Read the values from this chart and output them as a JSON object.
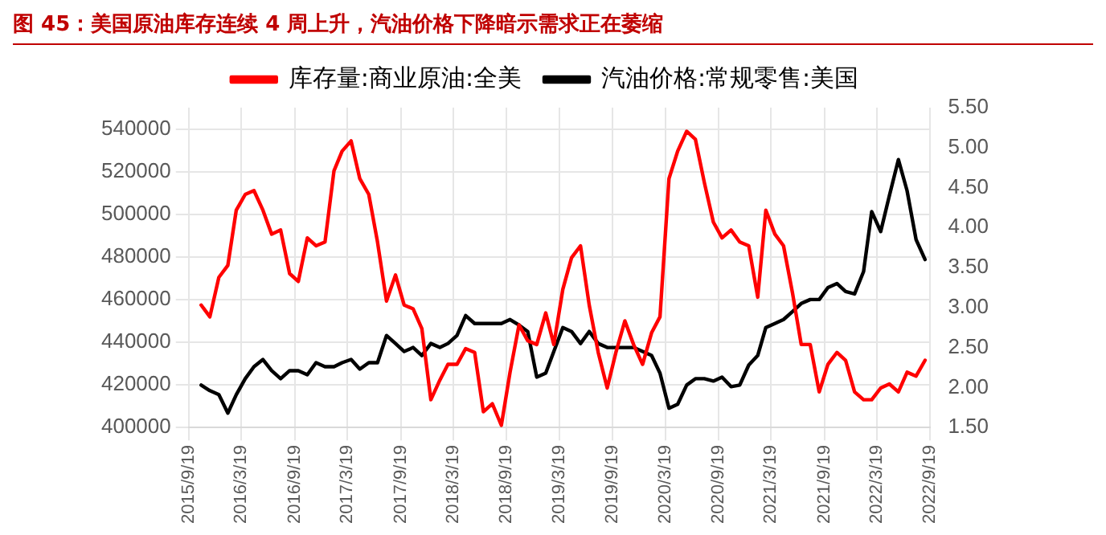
{
  "chart_data": {
    "type": "line",
    "title": "图 45：美国原油库存连续 4 周上升，汽油价格下降暗示需求正在萎缩",
    "legend": "top",
    "grid": true,
    "marker": "none",
    "line_style": "solid",
    "xlim": [
      "2015-09-19",
      "2022-09-19"
    ],
    "xticks": [
      {
        "value": "2015-09-19",
        "label": "2015/9/19"
      },
      {
        "value": "2016-03-19",
        "label": "2016/3/19"
      },
      {
        "value": "2016-09-19",
        "label": "2016/9/19"
      },
      {
        "value": "2017-03-19",
        "label": "2017/3/19"
      },
      {
        "value": "2017-09-19",
        "label": "2017/9/19"
      },
      {
        "value": "2018-03-19",
        "label": "2018/3/19"
      },
      {
        "value": "2018-09-19",
        "label": "2018/9/19"
      },
      {
        "value": "2019-03-19",
        "label": "2019/3/19"
      },
      {
        "value": "2019-09-19",
        "label": "2019/9/19"
      },
      {
        "value": "2020-03-19",
        "label": "2020/3/19"
      },
      {
        "value": "2020-09-19",
        "label": "2020/9/19"
      },
      {
        "value": "2021-03-19",
        "label": "2021/3/19"
      },
      {
        "value": "2021-09-19",
        "label": "2021/9/19"
      },
      {
        "value": "2022-03-19",
        "label": "2022/3/19"
      },
      {
        "value": "2022-09-19",
        "label": "2022/9/19"
      }
    ],
    "ylim": [
      400000,
      550000
    ],
    "yticks": [
      400000,
      420000,
      440000,
      460000,
      480000,
      500000,
      520000,
      540000
    ],
    "y2lim": [
      1.5,
      5.5
    ],
    "y2ticks": [
      {
        "value": 1.5,
        "label": "1.50"
      },
      {
        "value": 2,
        "label": "2.00"
      },
      {
        "value": 2.5,
        "label": "2.50"
      },
      {
        "value": 3,
        "label": "3.00"
      },
      {
        "value": 3.5,
        "label": "3.50"
      },
      {
        "value": 4,
        "label": "4.00"
      },
      {
        "value": 4.5,
        "label": "4.50"
      },
      {
        "value": 5,
        "label": "5.00"
      },
      {
        "value": 5.5,
        "label": "5.50"
      }
    ],
    "x": [
      "2015-11",
      "2015-12",
      "2016-01",
      "2016-02",
      "2016-03",
      "2016-04",
      "2016-05",
      "2016-06",
      "2016-07",
      "2016-08",
      "2016-09",
      "2016-10",
      "2016-11",
      "2016-12",
      "2017-01",
      "2017-02",
      "2017-03",
      "2017-04",
      "2017-05",
      "2017-06",
      "2017-07",
      "2017-08",
      "2017-09",
      "2017-10",
      "2017-11",
      "2017-12",
      "2018-01",
      "2018-02",
      "2018-03",
      "2018-04",
      "2018-05",
      "2018-06",
      "2018-07",
      "2018-08",
      "2018-09",
      "2018-10",
      "2018-11",
      "2018-12",
      "2019-01",
      "2019-02",
      "2019-03",
      "2019-04",
      "2019-05",
      "2019-06",
      "2019-07",
      "2019-08",
      "2019-09",
      "2019-10",
      "2019-11",
      "2019-12",
      "2020-01",
      "2020-02",
      "2020-03",
      "2020-04",
      "2020-05",
      "2020-06",
      "2020-07",
      "2020-08",
      "2020-09",
      "2020-10",
      "2020-11",
      "2020-12",
      "2021-01",
      "2021-02",
      "2021-03",
      "2021-04",
      "2021-05",
      "2021-06",
      "2021-07",
      "2021-08",
      "2021-09",
      "2021-10",
      "2021-11",
      "2021-12",
      "2022-01",
      "2022-02",
      "2022-03",
      "2022-04",
      "2022-05",
      "2022-06",
      "2022-07",
      "2022-08",
      "2022-09"
    ],
    "series": [
      {
        "name": "库存量:商业原油:全美",
        "color": "#ff0000",
        "values": [
          457400,
          451900,
          470400,
          476000,
          501900,
          509300,
          511100,
          501900,
          490700,
          492600,
          472200,
          468500,
          488900,
          485200,
          487000,
          520400,
          529600,
          534400,
          516700,
          509300,
          487000,
          459300,
          471500,
          457400,
          455600,
          446300,
          413000,
          422200,
          429600,
          429600,
          437000,
          435200,
          407400,
          411100,
          401000,
          425900,
          448100,
          440700,
          438900,
          453700,
          438900,
          464800,
          479600,
          485200,
          457400,
          435200,
          418500,
          435200,
          450000,
          438900,
          429600,
          444400,
          451900,
          516700,
          529600,
          538900,
          535200,
          514800,
          496300,
          488900,
          492600,
          487000,
          485200,
          461100,
          501900,
          490700,
          485200,
          463000,
          438900,
          438900,
          416700,
          429600,
          435200,
          431500,
          416700,
          413000,
          413000,
          418500,
          420400,
          416700,
          425900,
          424100,
          431500
        ]
      },
      {
        "name": "汽油价格:常规零售:美国",
        "color": "#000000",
        "axis": "y2",
        "values": [
          2.03,
          1.96,
          1.91,
          1.68,
          1.91,
          2.11,
          2.26,
          2.35,
          2.21,
          2.11,
          2.21,
          2.21,
          2.16,
          2.31,
          2.26,
          2.26,
          2.31,
          2.35,
          2.23,
          2.31,
          2.31,
          2.65,
          2.55,
          2.45,
          2.5,
          2.4,
          2.55,
          2.5,
          2.55,
          2.65,
          2.9,
          2.8,
          2.8,
          2.8,
          2.8,
          2.85,
          2.78,
          2.7,
          2.13,
          2.18,
          2.45,
          2.75,
          2.7,
          2.55,
          2.7,
          2.55,
          2.5,
          2.5,
          2.5,
          2.5,
          2.45,
          2.4,
          2.18,
          1.74,
          1.79,
          2.03,
          2.11,
          2.11,
          2.08,
          2.13,
          2.01,
          2.03,
          2.28,
          2.4,
          2.75,
          2.8,
          2.85,
          2.95,
          3.05,
          3.1,
          3.1,
          3.25,
          3.3,
          3.2,
          3.17,
          3.45,
          4.2,
          3.95,
          4.4,
          4.85,
          4.46,
          3.85,
          3.6
        ]
      }
    ]
  }
}
